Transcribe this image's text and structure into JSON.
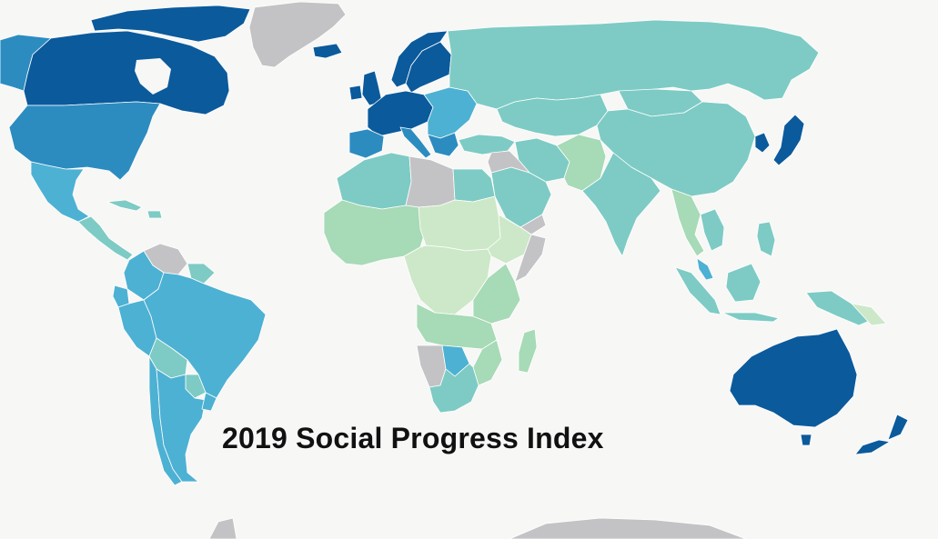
{
  "title": "2019 Social Progress Index",
  "colors": {
    "background": "#f7f7f6",
    "no_data": "#c3c3c6",
    "tier_very_high": "#0b5a9c",
    "tier_high": "#2c8cc0",
    "tier_upper_middle": "#4db1d3",
    "tier_middle": "#7dcbc4",
    "tier_lower_middle": "#a7dab6",
    "tier_low": "#cde8c8",
    "border": "#ffffff"
  }
}
